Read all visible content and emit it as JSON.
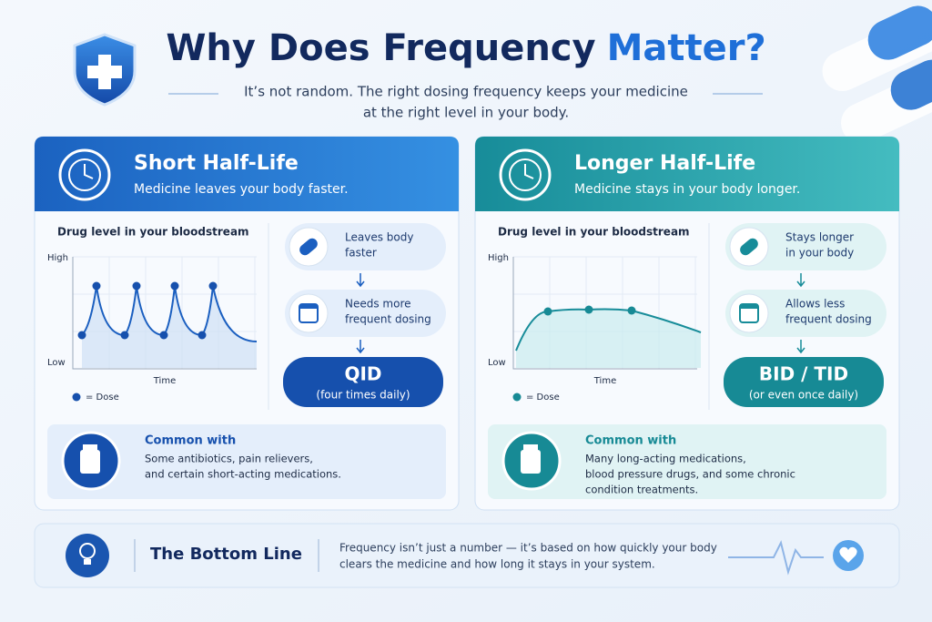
{
  "header": {
    "title": [
      "Why Does Frequency",
      "Matter?"
    ],
    "subtitle": [
      "It’s not random. The right dosing frequency keeps your medicine",
      "at the right level in your body."
    ]
  },
  "panels": [
    {
      "title": "Short Half-Life",
      "subtitle": "Medicine leaves your body faster.",
      "chart": {
        "label": "Drug level in your bloodstream",
        "high": "High",
        "low": "Low",
        "x_label": "Time",
        "legend": "= Dose"
      },
      "steps": [
        [
          "Leaves body",
          "faster"
        ],
        [
          "Needs more",
          "frequent dosing"
        ]
      ],
      "result": {
        "label": "QID",
        "detail": "(four times daily)"
      },
      "common": {
        "title": "Common with",
        "text": [
          "Some antibiotics, pain relievers,",
          "and certain short-acting medications."
        ]
      }
    },
    {
      "title": "Longer Half-Life",
      "subtitle": "Medicine stays in your body longer.",
      "chart": {
        "label": "Drug level in your bloodstream",
        "high": "High",
        "low": "Low",
        "x_label": "Time",
        "legend": "= Dose"
      },
      "steps": [
        [
          "Stays longer",
          "in your body"
        ],
        [
          "Allows less",
          "frequent dosing"
        ]
      ],
      "result": {
        "label": "BID / TID",
        "detail": "(or even once daily)"
      },
      "common": {
        "title": "Common with",
        "text": [
          "Many long-acting medications,",
          "blood pressure drugs, and some chronic",
          "condition treatments."
        ]
      }
    }
  ],
  "bottom": {
    "title": "The Bottom Line",
    "text": [
      "Frequency isn’t just a number — it’s based on how quickly your body",
      "clears the medicine and how long it stays in your system."
    ]
  }
}
